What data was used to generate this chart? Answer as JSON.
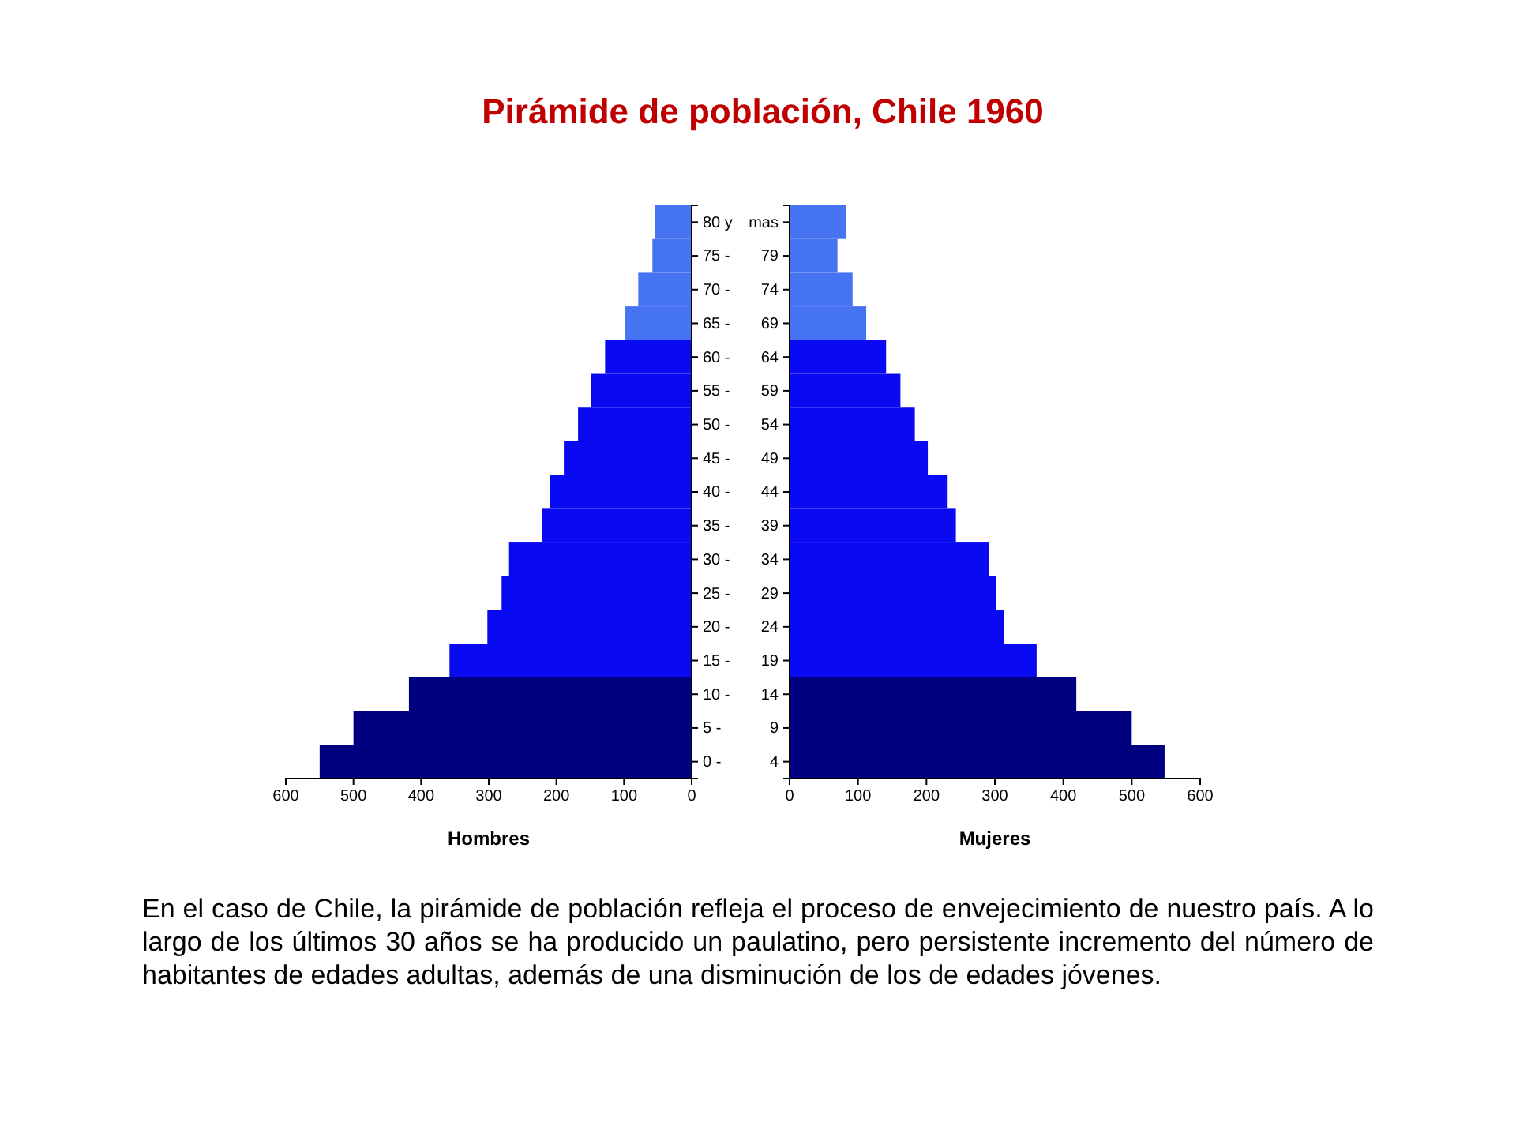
{
  "chart_data": [
    {
      "type": "bar",
      "orientation": "horizontal",
      "title": "Pirámide de población, Chile 1960",
      "xlabel": "Hombres",
      "categories": [
        "80 y",
        "75 -",
        "70 -",
        "65 -",
        "60 -",
        "55 -",
        "50 -",
        "45 -",
        "40 -",
        "35 -",
        "30 -",
        "25 -",
        "20 -",
        "15 -",
        "10 -",
        "5 -",
        "0 -"
      ],
      "values": [
        54,
        58,
        79,
        98,
        128,
        149,
        168,
        189,
        209,
        221,
        270,
        281,
        302,
        358,
        418,
        500,
        550
      ],
      "colors": [
        "#4573f2",
        "#4573f2",
        "#4573f2",
        "#4573f2",
        "#0a0af2",
        "#0a0af2",
        "#0a0af2",
        "#0a0af2",
        "#0a0af2",
        "#0a0af2",
        "#0a0af2",
        "#0a0af2",
        "#0a0af2",
        "#0a0af2",
        "#000080",
        "#000080",
        "#000080"
      ],
      "xlim": [
        600,
        0
      ],
      "xticks": [
        600,
        500,
        400,
        300,
        200,
        100,
        0
      ],
      "annotations": [
        "En el caso de Chile, la pirámide de población refleja el proceso de envejecimiento de nuestro país. A lo largo de los últimos 30 años se ha producido un paulatino, pero persistente incremento del número de habitantes de edades adultas, además de una disminución de los de edades jóvenes."
      ]
    },
    {
      "type": "bar",
      "orientation": "horizontal",
      "xlabel": "Mujeres",
      "categories": [
        "mas",
        "79",
        "74",
        "69",
        "64",
        "59",
        "54",
        "49",
        "44",
        "39",
        "34",
        "29",
        "24",
        "19",
        "14",
        "9",
        "4"
      ],
      "values": [
        82,
        70,
        92,
        112,
        141,
        162,
        183,
        202,
        231,
        243,
        291,
        302,
        313,
        361,
        419,
        500,
        548
      ],
      "colors": [
        "#4573f2",
        "#4573f2",
        "#4573f2",
        "#4573f2",
        "#0a0af2",
        "#0a0af2",
        "#0a0af2",
        "#0a0af2",
        "#0a0af2",
        "#0a0af2",
        "#0a0af2",
        "#0a0af2",
        "#0a0af2",
        "#0a0af2",
        "#000080",
        "#000080",
        "#000080"
      ],
      "xlim": [
        0,
        600
      ],
      "xticks": [
        0,
        100,
        200,
        300,
        400,
        500,
        600
      ]
    }
  ]
}
